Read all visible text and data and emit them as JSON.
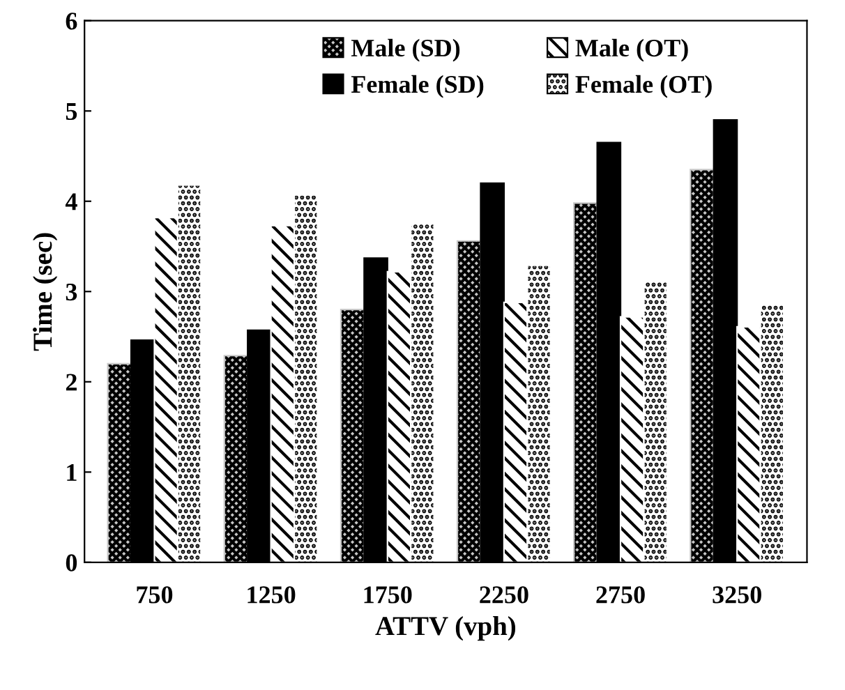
{
  "chart_data": {
    "type": "bar",
    "xlabel": "ATTV (vph)",
    "ylabel": "Time (sec)",
    "categories": [
      "750",
      "1250",
      "1750",
      "2250",
      "2750",
      "3250"
    ],
    "series": [
      {
        "name": "Male (SD)",
        "color": "#c8c8c8",
        "values": [
          2.2,
          2.29,
          2.8,
          3.56,
          3.98,
          4.35
        ]
      },
      {
        "name": "Female (SD)",
        "color": "#000000",
        "values": [
          2.46,
          2.57,
          3.37,
          4.2,
          4.65,
          4.9
        ]
      },
      {
        "name": "Male (OT)",
        "color": "#ffffff",
        "values": [
          3.82,
          3.73,
          3.22,
          2.88,
          2.72,
          2.61
        ]
      },
      {
        "name": "Female (OT)",
        "color": "#ffffff",
        "values": [
          4.18,
          4.07,
          3.75,
          3.29,
          3.12,
          2.86
        ]
      }
    ],
    "ylim": [
      0,
      6
    ],
    "yticks": [
      0,
      1,
      2,
      3,
      4,
      5,
      6
    ],
    "grid": false,
    "legend": "top"
  }
}
